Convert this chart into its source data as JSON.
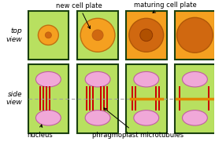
{
  "bg_color": "#ffffff",
  "cell_border_color": "#1a4010",
  "cell_fill_green": "#b8e060",
  "cell_fill_orange": "#f5a020",
  "nucleus_fill": "#f0a8d8",
  "nucleus_border": "#c060a0",
  "microtubule_color": "#cc0000",
  "cell_plate_line_color": "#e08800",
  "dashed_line_color": "#a0a0a0",
  "label_new_cell_plate": "new cell plate",
  "label_maturing_cell_plate": "maturing cell plate",
  "label_top_view": "top\nview",
  "label_side_view": "side\nview",
  "label_nucleus": "nucleus",
  "label_phragmoplast": "phragmoplast microtubules",
  "fontsize_label": 6.5,
  "fontsize_annot": 6.0
}
